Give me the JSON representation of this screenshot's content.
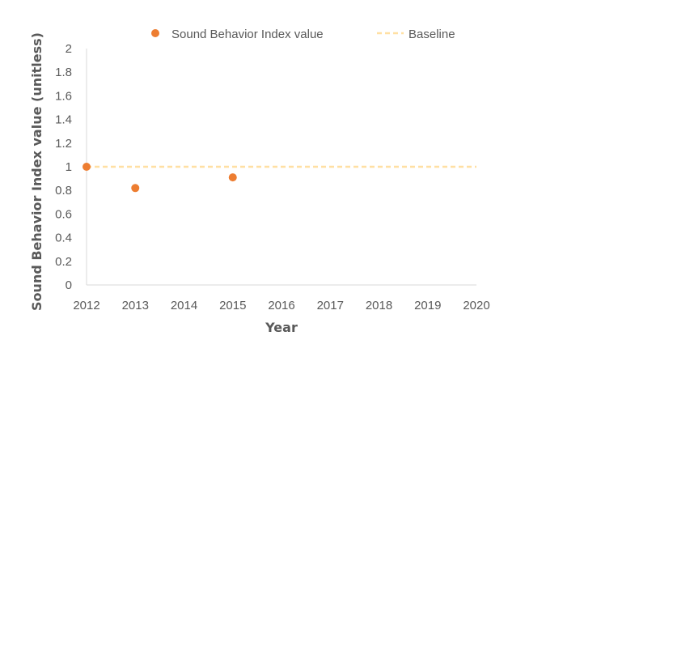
{
  "chart_data": {
    "type": "scatter",
    "title": "",
    "xlabel": "Year",
    "ylabel": "Sound Behavior Index  value (unitless)",
    "xlim": [
      2012,
      2020
    ],
    "ylim": [
      0,
      2
    ],
    "x_ticks": [
      "2012",
      "2013",
      "2014",
      "2015",
      "2016",
      "2017",
      "2018",
      "2019",
      "2020"
    ],
    "y_ticks": [
      "0",
      "0.2",
      "0.4",
      "0.6",
      "0.8",
      "1",
      "1.2",
      "1.4",
      "1.6",
      "1.8",
      "2"
    ],
    "grid": false,
    "legend_position": "top",
    "series": [
      {
        "name": "Sound Behavior Index value",
        "kind": "scatter",
        "color": "#ED7D31",
        "x": [
          2012,
          2013,
          2015
        ],
        "y": [
          1.0,
          0.82,
          0.91
        ]
      },
      {
        "name": "Baseline",
        "kind": "dashed-line",
        "color": "#FFE0A3",
        "x": [
          2012,
          2020
        ],
        "y": [
          1.0,
          1.0
        ]
      }
    ]
  }
}
